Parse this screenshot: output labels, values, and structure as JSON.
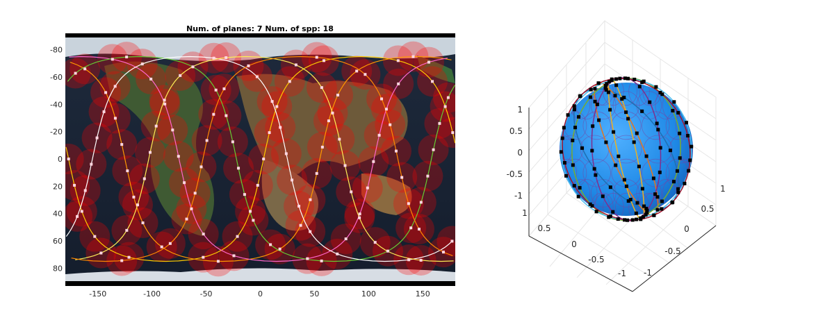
{
  "chart_data": [
    {
      "type": "scatter",
      "title": "Num. of planes: 7 Num. of spp: 18",
      "xlabel": "",
      "ylabel": "",
      "xlim": [
        -180,
        180
      ],
      "ylim": [
        90,
        -90
      ],
      "xticks": [
        "-150",
        "-100",
        "-50",
        "0",
        "50",
        "100",
        "150"
      ],
      "xtick_values": [
        -150,
        -100,
        -50,
        0,
        50,
        100,
        150
      ],
      "yticks": [
        "-80",
        "-60",
        "-40",
        "-20",
        "0",
        "20",
        "40",
        "60",
        "80"
      ],
      "ytick_values": [
        -80,
        -60,
        -40,
        -20,
        0,
        20,
        40,
        60,
        80
      ],
      "num_planes": 7,
      "sats_per_plane": 18,
      "inclination_deg": 75,
      "plane_lon0": [
        -177,
        -125,
        -75,
        -22,
        25,
        77,
        127
      ],
      "plane_colors": [
        "#ffcc00",
        "#ff9900",
        "#ff66cc",
        "#66cc33",
        "#ffffff",
        "#ffee55",
        "#ff8800"
      ],
      "coverage_color": "#ff0000",
      "background": "earth-map"
    },
    {
      "type": "scatter",
      "subtype": "3d-sphere",
      "xticks": [
        "-1",
        "-0.5",
        "0",
        "0.5",
        "1"
      ],
      "yticks": [
        "-1",
        "-0.5",
        "0",
        "0.5",
        "1"
      ],
      "zticks": [
        "-1",
        "-0.5",
        "0",
        "0.5",
        "1"
      ],
      "xlim": [
        -1,
        1
      ],
      "ylim": [
        -1,
        1
      ],
      "zlim": [
        -1,
        1
      ],
      "sphere_color": "#1e88e5",
      "orbit_colors": [
        "#1f6fb2",
        "#e3761f",
        "#edb120",
        "#7e2f8e",
        "#77ac30",
        "#4dbeee",
        "#a2142f"
      ]
    }
  ]
}
